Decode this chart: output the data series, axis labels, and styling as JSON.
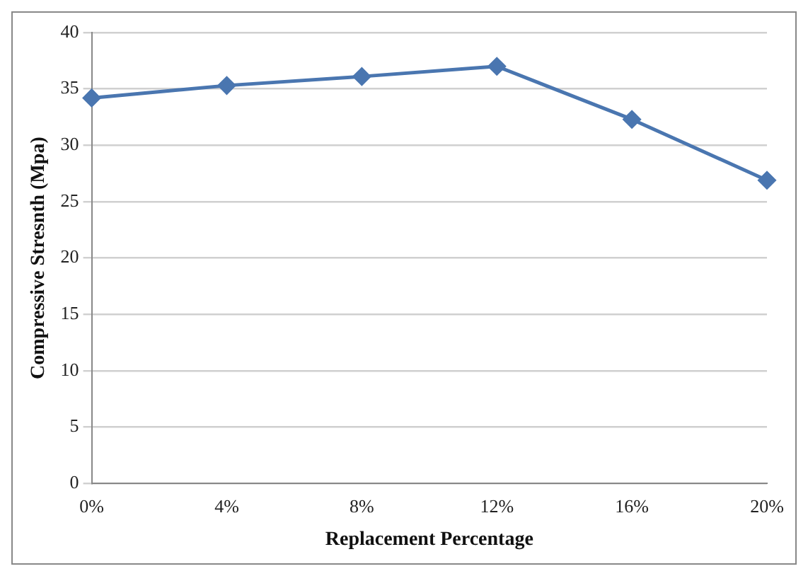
{
  "chart_data": {
    "type": "line",
    "xlabel": "Replacement Percentage",
    "ylabel": "Compressive Stresnth (Mpa)",
    "categories": [
      "0%",
      "4%",
      "8%",
      "12%",
      "16%",
      "20%"
    ],
    "series": [
      {
        "color": "#4a76b0",
        "values": [
          34.2,
          35.3,
          36.1,
          37,
          32.3,
          26.9
        ]
      }
    ],
    "ylim": [
      0,
      40
    ],
    "yticks": [
      0,
      5,
      10,
      15,
      20,
      25,
      30,
      35,
      40
    ],
    "grid": "y",
    "legend": false,
    "marker": "diamond",
    "line_style": "solid"
  }
}
